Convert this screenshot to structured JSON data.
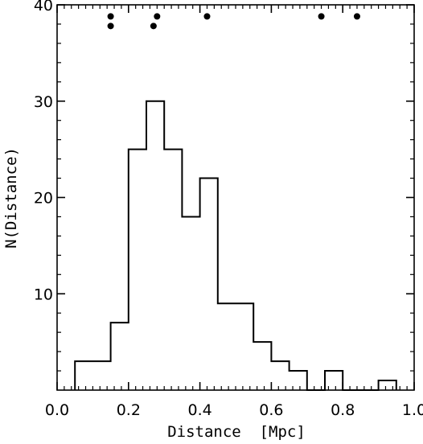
{
  "chart_data": {
    "type": "histogram",
    "title": "",
    "xlabel": "Distance  [Mpc]",
    "ylabel": "N(Distance)",
    "xlim": [
      0.0,
      1.0
    ],
    "ylim": [
      0,
      40
    ],
    "x_ticks": [
      "0.0",
      "0.2",
      "0.4",
      "0.6",
      "0.8",
      "1.0"
    ],
    "y_ticks": [
      "10",
      "20",
      "30",
      "40"
    ],
    "bin_width": 0.05,
    "bins": [
      {
        "x0": 0.05,
        "x1": 0.1,
        "count": 3
      },
      {
        "x0": 0.1,
        "x1": 0.15,
        "count": 3
      },
      {
        "x0": 0.15,
        "x1": 0.2,
        "count": 7
      },
      {
        "x0": 0.2,
        "x1": 0.25,
        "count": 25
      },
      {
        "x0": 0.25,
        "x1": 0.3,
        "count": 30
      },
      {
        "x0": 0.3,
        "x1": 0.35,
        "count": 25
      },
      {
        "x0": 0.35,
        "x1": 0.4,
        "count": 18
      },
      {
        "x0": 0.4,
        "x1": 0.45,
        "count": 22
      },
      {
        "x0": 0.45,
        "x1": 0.5,
        "count": 9
      },
      {
        "x0": 0.5,
        "x1": 0.55,
        "count": 9
      },
      {
        "x0": 0.55,
        "x1": 0.6,
        "count": 5
      },
      {
        "x0": 0.6,
        "x1": 0.65,
        "count": 3
      },
      {
        "x0": 0.65,
        "x1": 0.7,
        "count": 2
      },
      {
        "x0": 0.7,
        "x1": 0.75,
        "count": 0
      },
      {
        "x0": 0.75,
        "x1": 0.8,
        "count": 2
      },
      {
        "x0": 0.8,
        "x1": 0.85,
        "count": 0
      },
      {
        "x0": 0.85,
        "x1": 0.9,
        "count": 0
      },
      {
        "x0": 0.9,
        "x1": 0.95,
        "count": 1
      }
    ],
    "markers": [
      {
        "x": 0.15,
        "y": 38.8
      },
      {
        "x": 0.15,
        "y": 37.8
      },
      {
        "x": 0.28,
        "y": 38.8
      },
      {
        "x": 0.27,
        "y": 37.8
      },
      {
        "x": 0.42,
        "y": 38.8
      },
      {
        "x": 0.74,
        "y": 38.8
      },
      {
        "x": 0.84,
        "y": 38.8
      }
    ],
    "colors": {
      "line": "#000000",
      "background": "#ffffff"
    }
  }
}
